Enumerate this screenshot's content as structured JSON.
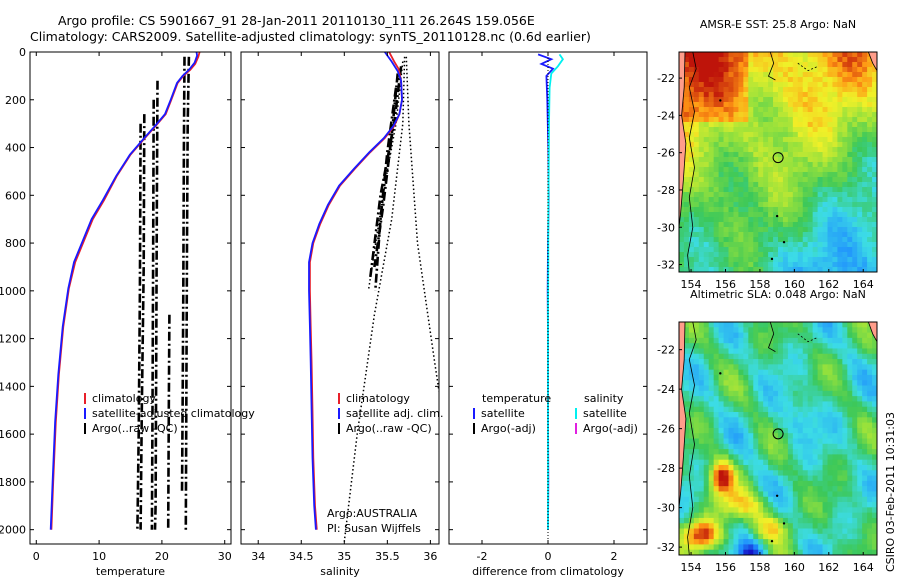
{
  "title_line1": "Argo profile: CS 5901667_91 28-Jan-2011 20110130_111 26.264S 159.056E",
  "title_line2": "Climatology: CARS2009. Satellite-adjusted climatology: synTS_20110128.nc (0.6d earlier)",
  "stamp": "CSIRO 03-Feb-2011 10:31:03",
  "colors": {
    "climatology": "#e8202a",
    "satellite": "#1a1aff",
    "argo": "#000000",
    "temp_satellite": "#1a1aff",
    "sal_satellite": "#00f0f0",
    "sal_argo": "#e020e0",
    "coast": "#ff9d8a"
  },
  "chart_data": [
    {
      "id": "temperature",
      "type": "line",
      "xlabel": "temperature",
      "xlim": [
        -1,
        31
      ],
      "xticks": [
        0,
        10,
        20,
        30
      ],
      "ylim": [
        2060,
        0
      ],
      "yticks": [
        0,
        200,
        400,
        600,
        800,
        1000,
        1200,
        1400,
        1600,
        1800,
        2000
      ],
      "legend": [
        "climatology",
        "satellite-adjusted climatology",
        "Argo(..raw -QC)"
      ],
      "series": [
        {
          "name": "climatology",
          "color": "#e8202a",
          "points": [
            [
              26,
              0
            ],
            [
              25.8,
              20
            ],
            [
              25.3,
              50
            ],
            [
              24.5,
              75
            ],
            [
              23.4,
              100
            ],
            [
              22.5,
              130
            ],
            [
              21.5,
              200
            ],
            [
              20.6,
              260
            ],
            [
              19,
              310
            ],
            [
              17.3,
              360
            ],
            [
              15,
              430
            ],
            [
              12.8,
              520
            ],
            [
              10.8,
              620
            ],
            [
              9,
              700
            ],
            [
              7.6,
              790
            ],
            [
              6.2,
              880
            ],
            [
              5.2,
              990
            ],
            [
              4.3,
              1150
            ],
            [
              3.6,
              1350
            ],
            [
              3.1,
              1550
            ],
            [
              2.7,
              1800
            ],
            [
              2.4,
              2000
            ]
          ]
        },
        {
          "name": "satellite-adjusted climatology",
          "color": "#1a1aff",
          "points": [
            [
              25.5,
              0
            ],
            [
              25.6,
              15
            ],
            [
              25.2,
              45
            ],
            [
              24.3,
              75
            ],
            [
              23.3,
              100
            ],
            [
              22.4,
              130
            ],
            [
              21.4,
              200
            ],
            [
              20.5,
              260
            ],
            [
              18.9,
              310
            ],
            [
              17.2,
              360
            ],
            [
              14.9,
              430
            ],
            [
              12.7,
              520
            ],
            [
              10.6,
              620
            ],
            [
              8.8,
              700
            ],
            [
              7.4,
              790
            ],
            [
              6.0,
              880
            ],
            [
              5.1,
              990
            ],
            [
              4.2,
              1150
            ],
            [
              3.5,
              1350
            ],
            [
              3.0,
              1550
            ],
            [
              2.6,
              1800
            ],
            [
              2.3,
              2000
            ]
          ]
        }
      ],
      "argo_dashed": [
        [
          [
            24.3,
            20
          ],
          [
            24.1,
            300
          ],
          [
            24.0,
            800
          ],
          [
            23.9,
            1400
          ],
          [
            23.8,
            2000
          ]
        ],
        [
          [
            23.6,
            20
          ],
          [
            23.5,
            400
          ],
          [
            23.4,
            1000
          ],
          [
            23.3,
            1500
          ],
          [
            23.2,
            1850
          ]
        ],
        [
          [
            19.3,
            120
          ],
          [
            19.2,
            600
          ],
          [
            19.1,
            1200
          ],
          [
            19.0,
            1900
          ],
          [
            18.9,
            2000
          ]
        ],
        [
          [
            18.7,
            200
          ],
          [
            18.6,
            900
          ],
          [
            18.5,
            1500
          ],
          [
            18.4,
            2000
          ]
        ],
        [
          [
            17.2,
            260
          ],
          [
            17.1,
            900
          ],
          [
            16.8,
            1500
          ],
          [
            16.6,
            2000
          ]
        ],
        [
          [
            16.6,
            300
          ],
          [
            16.5,
            1000
          ],
          [
            16.3,
            1600
          ],
          [
            16.1,
            2000
          ]
        ],
        [
          [
            21.2,
            1100
          ],
          [
            21.1,
            1500
          ],
          [
            21.0,
            2000
          ]
        ]
      ]
    },
    {
      "id": "salinity",
      "type": "line",
      "xlabel": "salinity",
      "xlim": [
        33.8,
        36.1
      ],
      "xticks": [
        34,
        34.5,
        35,
        35.5,
        36
      ],
      "ylim": [
        2060,
        0
      ],
      "legend": [
        "climatology",
        "satellite adj. clim.",
        "Argo(..raw -QC)"
      ],
      "annotation": [
        "Argo:AUSTRALIA",
        "PI: Susan Wijffels"
      ],
      "series": [
        {
          "name": "climatology",
          "color": "#e8202a",
          "points": [
            [
              35.52,
              0
            ],
            [
              35.58,
              40
            ],
            [
              35.63,
              70
            ],
            [
              35.66,
              120
            ],
            [
              35.67,
              200
            ],
            [
              35.64,
              260
            ],
            [
              35.58,
              310
            ],
            [
              35.47,
              360
            ],
            [
              35.3,
              420
            ],
            [
              35.12,
              490
            ],
            [
              34.95,
              560
            ],
            [
              34.82,
              640
            ],
            [
              34.72,
              720
            ],
            [
              34.64,
              800
            ],
            [
              34.6,
              880
            ],
            [
              34.6,
              1000
            ],
            [
              34.61,
              1150
            ],
            [
              34.62,
              1300
            ],
            [
              34.63,
              1500
            ],
            [
              34.64,
              1700
            ],
            [
              34.66,
              1900
            ],
            [
              34.68,
              2000
            ]
          ]
        },
        {
          "name": "satellite adj. clim.",
          "color": "#1a1aff",
          "points": [
            [
              35.47,
              0
            ],
            [
              35.55,
              40
            ],
            [
              35.62,
              80
            ],
            [
              35.66,
              120
            ],
            [
              35.67,
              200
            ],
            [
              35.64,
              260
            ],
            [
              35.57,
              310
            ],
            [
              35.46,
              360
            ],
            [
              35.29,
              420
            ],
            [
              35.11,
              490
            ],
            [
              34.94,
              560
            ],
            [
              34.81,
              640
            ],
            [
              34.71,
              720
            ],
            [
              34.63,
              800
            ],
            [
              34.59,
              880
            ],
            [
              34.59,
              1000
            ],
            [
              34.6,
              1150
            ],
            [
              34.61,
              1300
            ],
            [
              34.62,
              1500
            ],
            [
              34.63,
              1700
            ],
            [
              34.65,
              1900
            ],
            [
              34.67,
              2000
            ]
          ]
        }
      ],
      "argo_dotted": [
        [
          [
            35.72,
            20
          ],
          [
            35.75,
            300
          ],
          [
            35.85,
            800
          ],
          [
            36.05,
            1300
          ],
          [
            36.1,
            1420
          ]
        ],
        [
          [
            35.7,
            20
          ],
          [
            35.68,
            300
          ],
          [
            35.55,
            700
          ],
          [
            35.35,
            1100
          ],
          [
            35.15,
            1600
          ],
          [
            35.0,
            2050
          ]
        ],
        [
          [
            35.68,
            40
          ],
          [
            35.6,
            300
          ],
          [
            35.45,
            600
          ],
          [
            35.28,
            1000
          ]
        ]
      ],
      "argo_dashed": [
        [
          [
            35.66,
            60
          ],
          [
            35.58,
            300
          ],
          [
            35.42,
            600
          ],
          [
            35.3,
            950
          ]
        ],
        [
          [
            35.62,
            90
          ],
          [
            35.55,
            350
          ],
          [
            35.45,
            650
          ],
          [
            35.35,
            900
          ]
        ],
        [
          [
            35.6,
            150
          ],
          [
            35.5,
            420
          ],
          [
            35.42,
            700
          ],
          [
            35.36,
            1000
          ]
        ]
      ]
    },
    {
      "id": "difference",
      "type": "line",
      "xlabel": "difference from climatology",
      "xlim": [
        -3,
        3
      ],
      "xticks": [
        -2,
        0,
        2
      ],
      "ylim": [
        2060,
        0
      ],
      "legend_temperature_title": "temperature",
      "legend_salinity_title": "salinity",
      "legend_temperature": [
        "satellite",
        "Argo(-adj)"
      ],
      "legend_salinity": [
        "satellite",
        "Argo(-adj)"
      ],
      "series": [
        {
          "name": "temperature satellite",
          "color": "#1a1aff",
          "points": [
            [
              -0.3,
              10
            ],
            [
              0.1,
              30
            ],
            [
              -0.2,
              50
            ],
            [
              0.15,
              70
            ],
            [
              -0.05,
              100
            ],
            [
              -0.02,
              200
            ],
            [
              0.01,
              400
            ],
            [
              0.02,
              600
            ],
            [
              0.0,
              800
            ],
            [
              -0.01,
              1000
            ],
            [
              0.0,
              1200
            ],
            [
              0.0,
              1500
            ],
            [
              0.01,
              1800
            ],
            [
              0.0,
              2000
            ]
          ]
        },
        {
          "name": "salinity satellite",
          "color": "#00f0f0",
          "points": [
            [
              0.35,
              10
            ],
            [
              0.45,
              30
            ],
            [
              0.3,
              60
            ],
            [
              0.1,
              90
            ],
            [
              0.05,
              150
            ],
            [
              0.03,
              300
            ],
            [
              0.02,
              500
            ],
            [
              0.01,
              700
            ],
            [
              0.01,
              900
            ],
            [
              0.0,
              1100
            ],
            [
              0.0,
              1400
            ],
            [
              0.0,
              1700
            ],
            [
              0.0,
              2000
            ]
          ]
        }
      ]
    },
    {
      "id": "sst-map",
      "type": "heatmap",
      "title": "AMSR-E SST: 25.8 Argo: NaN",
      "xlim": [
        153.3,
        164.8
      ],
      "ylim": [
        -32.4,
        -20.6
      ],
      "xticks": [
        154,
        156,
        158,
        160,
        162,
        164
      ],
      "yticks": [
        -22,
        -24,
        -26,
        -28,
        -30,
        -32
      ],
      "argo_position": [
        159.056,
        -26.264
      ]
    },
    {
      "id": "sla-map",
      "type": "heatmap",
      "title": "Altimetric SLA: 0.048 Argo: NaN",
      "xlim": [
        153.3,
        164.8
      ],
      "ylim": [
        -32.4,
        -20.6
      ],
      "xticks": [
        154,
        156,
        158,
        160,
        162,
        164
      ],
      "yticks": [
        -22,
        -24,
        -26,
        -28,
        -30,
        -32
      ],
      "argo_position": [
        159.056,
        -26.264
      ]
    }
  ]
}
